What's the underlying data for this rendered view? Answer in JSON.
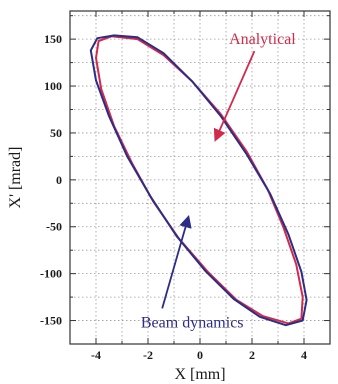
{
  "chart_data": {
    "type": "line",
    "xlabel": "X [mm]",
    "ylabel": "X' [mrad]",
    "xlim": [
      -5,
      5
    ],
    "ylim": [
      -175,
      180
    ],
    "x_ticks": [
      -4,
      -2,
      0,
      2,
      4
    ],
    "y_ticks": [
      150,
      100,
      50,
      0,
      -50,
      -100,
      -150
    ],
    "x_tick_labels": [
      "-4",
      "-2",
      "0",
      "2",
      "4"
    ],
    "y_tick_labels": [
      "150",
      "100",
      "50",
      "0",
      "-50",
      "-100",
      "-150"
    ],
    "grid": true,
    "series": [
      {
        "name": "Analytical",
        "color": "#d12a4b",
        "points": [
          [
            -3.4,
            153
          ],
          [
            -2.4,
            150
          ],
          [
            -1.4,
            133
          ],
          [
            -0.3,
            105
          ],
          [
            0.8,
            70
          ],
          [
            1.8,
            30
          ],
          [
            2.6,
            -10
          ],
          [
            3.2,
            -50
          ],
          [
            3.7,
            -90
          ],
          [
            3.95,
            -125
          ],
          [
            3.9,
            -148
          ],
          [
            3.4,
            -153
          ],
          [
            2.4,
            -145
          ],
          [
            1.4,
            -128
          ],
          [
            0.3,
            -98
          ],
          [
            -0.8,
            -63
          ],
          [
            -1.8,
            -23
          ],
          [
            -2.6,
            17
          ],
          [
            -3.3,
            57
          ],
          [
            -3.8,
            97
          ],
          [
            -4.0,
            130
          ],
          [
            -3.9,
            148
          ],
          [
            -3.4,
            153
          ]
        ]
      },
      {
        "name": "Beam dynamics",
        "color": "#2b2d86",
        "points": [
          [
            -3.3,
            154
          ],
          [
            -2.4,
            152
          ],
          [
            -1.4,
            135
          ],
          [
            -0.3,
            105
          ],
          [
            0.8,
            68
          ],
          [
            1.8,
            27
          ],
          [
            2.7,
            -15
          ],
          [
            3.4,
            -58
          ],
          [
            3.9,
            -98
          ],
          [
            4.1,
            -128
          ],
          [
            3.95,
            -150
          ],
          [
            3.3,
            -155
          ],
          [
            2.3,
            -146
          ],
          [
            1.3,
            -127
          ],
          [
            0.2,
            -97
          ],
          [
            -0.9,
            -60
          ],
          [
            -1.9,
            -18
          ],
          [
            -2.8,
            25
          ],
          [
            -3.5,
            68
          ],
          [
            -4.0,
            106
          ],
          [
            -4.2,
            138
          ],
          [
            -3.95,
            151
          ],
          [
            -3.3,
            154
          ]
        ]
      }
    ],
    "annotations": [
      {
        "text": "Analytical",
        "color": "#d12a4b",
        "data_x": 2.4,
        "data_y": 150,
        "arrow_to_x": 0.6,
        "arrow_to_y": 43
      },
      {
        "text": "Beam dynamics",
        "color": "#2b2d86",
        "data_x": -0.3,
        "data_y": -152,
        "arrow_to_x": -0.45,
        "arrow_to_y": -40
      }
    ]
  }
}
